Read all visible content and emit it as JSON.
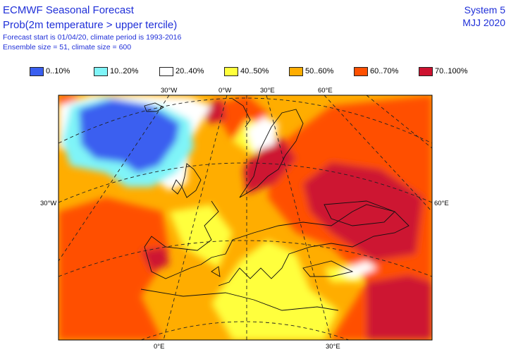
{
  "header": {
    "title": "ECMWF Seasonal Forecast",
    "subtitle": "Prob(2m temperature > upper tercile)",
    "line3": "Forecast start is 01/04/20, climate period is 1993-2016",
    "line4": "Ensemble size = 51, climate size = 600",
    "system": "System 5",
    "season": "MJJ 2020"
  },
  "legend": [
    {
      "label": "0..10%",
      "color": "#3a5ff0"
    },
    {
      "label": "10..20%",
      "color": "#7ff4f8"
    },
    {
      "label": "20..40%",
      "color": "#ffffff"
    },
    {
      "label": "40..50%",
      "color": "#ffff3c"
    },
    {
      "label": "50..60%",
      "color": "#ffad00"
    },
    {
      "label": "60..70%",
      "color": "#ff5000"
    },
    {
      "label": "70..100%",
      "color": "#cd1230"
    }
  ],
  "axis_labels": {
    "top": [
      "30°W",
      "0°W",
      "30°E",
      "60°E"
    ],
    "bottom": [
      "0°E",
      "30°E"
    ],
    "left": "30°W",
    "right": "60°E"
  }
}
